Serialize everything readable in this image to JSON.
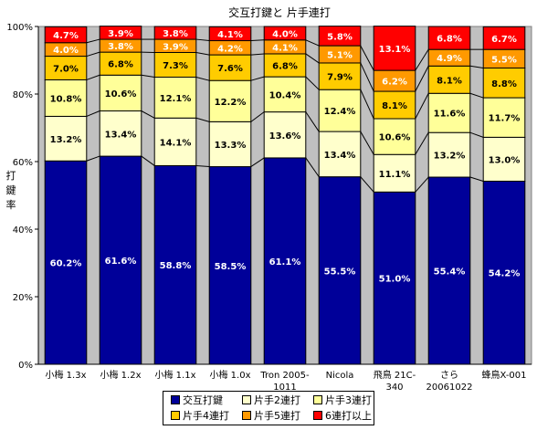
{
  "chart_data": {
    "type": "bar",
    "stacked": true,
    "percent": true,
    "title": "交互打鍵と 片手連打",
    "ylabel": "打鍵率",
    "ylim": [
      0,
      100
    ],
    "yticks": [
      "0%",
      "20%",
      "40%",
      "60%",
      "80%",
      "100%"
    ],
    "grid": false,
    "legend_position": "bottom",
    "categories": [
      [
        "小梅 1.3x"
      ],
      [
        "小梅 1.2x"
      ],
      [
        "小梅 1.1x"
      ],
      [
        "小梅 1.0x"
      ],
      [
        "Tron 2005-",
        "1011"
      ],
      [
        "Nicola"
      ],
      [
        "飛鳥 21C-",
        "340"
      ],
      [
        "さら",
        "20061022"
      ],
      [
        "蜂鳥X-001"
      ]
    ],
    "series": [
      {
        "name": "交互打鍵",
        "color": "#000099",
        "label_color": "#ffffff",
        "values": [
          60.2,
          61.6,
          58.8,
          58.5,
          61.1,
          55.5,
          51.0,
          55.4,
          54.2
        ]
      },
      {
        "name": "片手2連打",
        "color": "#ffffcc",
        "label_color": "#000000",
        "values": [
          13.2,
          13.4,
          14.1,
          13.3,
          13.6,
          13.4,
          11.1,
          13.2,
          13.0
        ]
      },
      {
        "name": "片手3連打",
        "color": "#ffff99",
        "label_color": "#000000",
        "values": [
          10.8,
          10.6,
          12.1,
          12.2,
          10.4,
          12.4,
          10.6,
          11.6,
          11.7
        ]
      },
      {
        "name": "片手4連打",
        "color": "#ffcc00",
        "label_color": "#000000",
        "values": [
          7.0,
          6.8,
          7.3,
          7.6,
          6.8,
          7.9,
          8.1,
          8.1,
          8.8
        ]
      },
      {
        "name": "片手5連打",
        "color": "#ff9900",
        "label_color": "#ffffff",
        "values": [
          4.0,
          3.8,
          3.9,
          4.2,
          4.1,
          5.1,
          6.2,
          4.9,
          5.5
        ]
      },
      {
        "name": "6連打以上",
        "color": "#ff0000",
        "label_color": "#ffffff",
        "values": [
          4.7,
          3.9,
          3.8,
          4.1,
          4.0,
          5.8,
          13.1,
          6.8,
          6.7
        ]
      }
    ],
    "value_suffix": "%",
    "plot_background": "#c0c0c0"
  }
}
